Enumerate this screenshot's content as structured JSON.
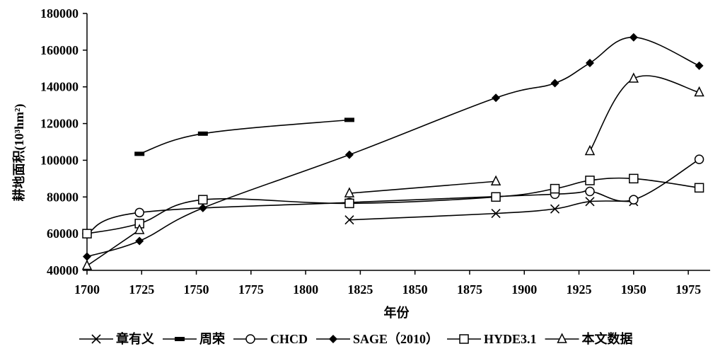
{
  "chart_data": {
    "type": "line",
    "xlabel": "年份",
    "ylabel": "耕地面积(10³hm²)",
    "xlim": [
      1700,
      1985
    ],
    "ylim": [
      40000,
      180000
    ],
    "x_ticks": [
      1700,
      1725,
      1750,
      1775,
      1800,
      1825,
      1850,
      1875,
      1900,
      1925,
      1950,
      1975
    ],
    "y_ticks": [
      40000,
      60000,
      80000,
      100000,
      120000,
      140000,
      160000,
      180000
    ],
    "grid": false,
    "legend_position": "bottom",
    "series": [
      {
        "name": "章有义",
        "marker": "x",
        "color": "#000000",
        "points": [
          [
            1820,
            67500
          ],
          [
            1887,
            71000
          ],
          [
            1914,
            73500
          ],
          [
            1930,
            77500
          ],
          [
            1950,
            77500
          ]
        ]
      },
      {
        "name": "周荣",
        "marker": "bar",
        "color": "#000000",
        "points": [
          [
            1724,
            103500
          ],
          [
            1753,
            114500
          ],
          [
            1820,
            122000
          ]
        ]
      },
      {
        "name": "CHCD",
        "marker": "circle",
        "color": "#000000",
        "points": [
          [
            1700,
            60000
          ],
          [
            1724,
            71500
          ],
          [
            1820,
            77000
          ],
          [
            1914,
            81500
          ],
          [
            1930,
            83000
          ],
          [
            1950,
            78500
          ],
          [
            1980,
            100500
          ]
        ]
      },
      {
        "name": "SAGE（2010）",
        "marker": "diamond",
        "color": "#000000",
        "points": [
          [
            1700,
            47500
          ],
          [
            1724,
            56000
          ],
          [
            1753,
            74000
          ],
          [
            1820,
            103000
          ],
          [
            1887,
            134000
          ],
          [
            1914,
            142000
          ],
          [
            1930,
            153000
          ],
          [
            1950,
            167000
          ],
          [
            1980,
            151500
          ]
        ]
      },
      {
        "name": "HYDE3.1",
        "marker": "square",
        "color": "#000000",
        "points": [
          [
            1700,
            60000
          ],
          [
            1724,
            65500
          ],
          [
            1753,
            78500
          ],
          [
            1820,
            76500
          ],
          [
            1887,
            80000
          ],
          [
            1914,
            84500
          ],
          [
            1930,
            89000
          ],
          [
            1950,
            90000
          ],
          [
            1980,
            85000
          ]
        ]
      },
      {
        "name": "本文数据",
        "marker": "triangle",
        "color": "#000000",
        "segments": [
          [
            [
              1700,
              42500
            ],
            [
              1724,
              62000
            ]
          ],
          [
            [
              1820,
              82000
            ],
            [
              1887,
              88500
            ]
          ],
          [
            [
              1930,
              105000
            ],
            [
              1950,
              144500
            ],
            [
              1980,
              137000
            ]
          ]
        ]
      }
    ]
  }
}
